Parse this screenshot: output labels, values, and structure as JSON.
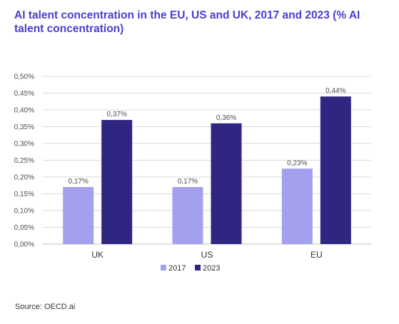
{
  "title": "AI talent concentration in the EU, US and UK, 2017 and 2023 (% AI talent concentration)",
  "source": "Source: OECD.ai",
  "colors": {
    "s2017": "#a3a1ef",
    "s2023": "#2e2680",
    "grid": "#d9d9d9",
    "title": "#4a3ecf"
  },
  "chart_data": {
    "type": "bar",
    "categories": [
      "UK",
      "US",
      "EU"
    ],
    "series": [
      {
        "name": "2017",
        "values": [
          0.17,
          0.17,
          0.225
        ],
        "labels": [
          "0,17%",
          "0,17%",
          "0,23%"
        ]
      },
      {
        "name": "2023",
        "values": [
          0.37,
          0.36,
          0.44
        ],
        "labels": [
          "0,37%",
          "0,36%",
          "0,44%"
        ]
      }
    ],
    "ylim": [
      0,
      0.5
    ],
    "yticks": [
      0,
      0.05,
      0.1,
      0.15,
      0.2,
      0.25,
      0.3,
      0.35,
      0.4,
      0.45,
      0.5
    ],
    "ytick_labels": [
      "0,00%",
      "0,05%",
      "0,10%",
      "0,15%",
      "0,20%",
      "0,25%",
      "0,30%",
      "0,35%",
      "0,40%",
      "0,45%",
      "0,50%"
    ],
    "grid": true,
    "legend": "bottom"
  }
}
